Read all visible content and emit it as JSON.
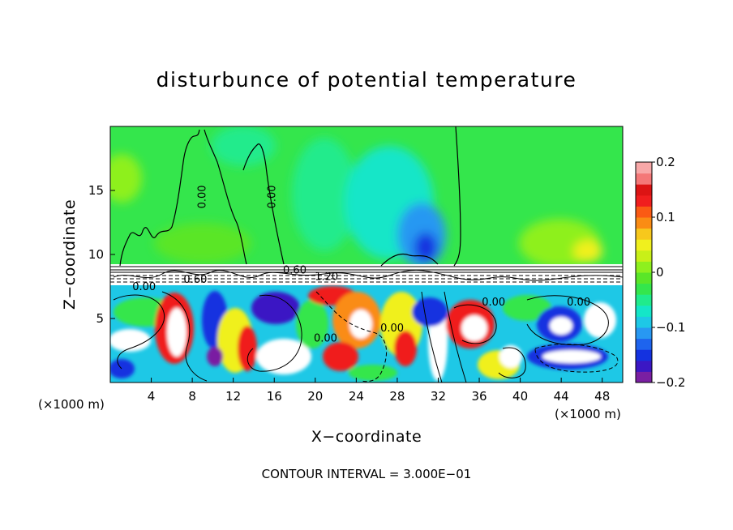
{
  "chart_data": {
    "type": "heatmap",
    "title": "disturbunce of potential temperature",
    "xlabel": "X−coordinate",
    "ylabel": "Z−coordinate",
    "x_unit_left": "(×1000 m)",
    "x_unit_right": "(×1000 m)",
    "xlim": [
      0,
      50
    ],
    "ylim": [
      0,
      20
    ],
    "x_ticks": [
      {
        "value": 4,
        "label": "4"
      },
      {
        "value": 8,
        "label": "8"
      },
      {
        "value": 12,
        "label": "12"
      },
      {
        "value": 16,
        "label": "16"
      },
      {
        "value": 20,
        "label": "20"
      },
      {
        "value": 24,
        "label": "24"
      },
      {
        "value": 28,
        "label": "28"
      },
      {
        "value": 32,
        "label": "32"
      },
      {
        "value": 36,
        "label": "36"
      },
      {
        "value": 40,
        "label": "40"
      },
      {
        "value": 44,
        "label": "44"
      },
      {
        "value": 48,
        "label": "48"
      }
    ],
    "y_ticks": [
      {
        "value": 5,
        "label": "5"
      },
      {
        "value": 10,
        "label": "10"
      },
      {
        "value": 15,
        "label": "15"
      }
    ],
    "colorbar": {
      "range": [
        -0.2,
        0.2
      ],
      "ticks": [
        {
          "value": 0.2,
          "label": "0.2"
        },
        {
          "value": 0.1,
          "label": "0.1"
        },
        {
          "value": 0,
          "label": "0"
        },
        {
          "value": -0.1,
          "label": "−0.1"
        },
        {
          "value": -0.2,
          "label": "−0.2"
        }
      ],
      "colors": [
        "#7a1fa2",
        "#3b17c4",
        "#1432e0",
        "#1e64ee",
        "#2898f2",
        "#1ec8e6",
        "#14e6c8",
        "#20eb8c",
        "#34e64c",
        "#5ae628",
        "#8ef01e",
        "#c8f018",
        "#f0f01e",
        "#f7c81c",
        "#fa8c14",
        "#fa5a14",
        "#f01e1e",
        "#dc1414",
        "#f47878",
        "#f8a8a8"
      ]
    },
    "contour_labels": [
      {
        "text": "0.00",
        "x": 9.3,
        "z": 14.5
      },
      {
        "text": "0.00",
        "x": 16.1,
        "z": 14.5
      },
      {
        "text": "0.60",
        "x": 18.0,
        "z": 8.5
      },
      {
        "text": "0.60",
        "x": 8.3,
        "z": 7.8
      },
      {
        "text": "1.20",
        "x": 21.1,
        "z": 8.0
      },
      {
        "text": "0.00",
        "x": 45.7,
        "z": 6.0
      },
      {
        "text": "0.00",
        "x": 27.5,
        "z": 4.0
      },
      {
        "text": "0.00",
        "x": 37.4,
        "z": 6.0
      },
      {
        "text": "0.00",
        "x": 21.0,
        "z": 3.2
      },
      {
        "text": "0.00",
        "x": 3.3,
        "z": 7.2
      }
    ],
    "contour_interval_text": "CONTOUR INTERVAL = 3.000E−01"
  }
}
